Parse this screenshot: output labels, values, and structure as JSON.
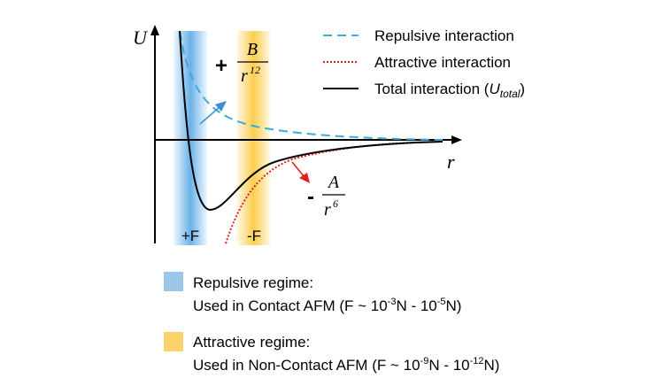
{
  "axes": {
    "y_label": "U",
    "x_label": "r"
  },
  "repulsive_term": {
    "sign": "+",
    "numerator": "B",
    "denominator": "r",
    "exponent": "12"
  },
  "attractive_term": {
    "sign": "-",
    "numerator": "A",
    "denominator": "r",
    "exponent": "6"
  },
  "legend": [
    {
      "label": "Repulsive interaction"
    },
    {
      "label": "Attractive interaction"
    },
    {
      "label": "Total interaction (",
      "symbol": "U",
      "subscript": "total",
      "suffix": ")"
    }
  ],
  "regions": [
    "+F",
    "-F"
  ],
  "regimes": [
    {
      "title": "Repulsive regime:",
      "description": [
        "Used in Contact AFM (F ~ 10",
        "-3",
        "N - 10",
        "-5",
        "N)"
      ]
    },
    {
      "title": "Attractive regime:",
      "description": [
        "Used in Non-Contact AFM (F ~ 10",
        "-9",
        "N - 10",
        "-12",
        "N)"
      ]
    }
  ]
}
